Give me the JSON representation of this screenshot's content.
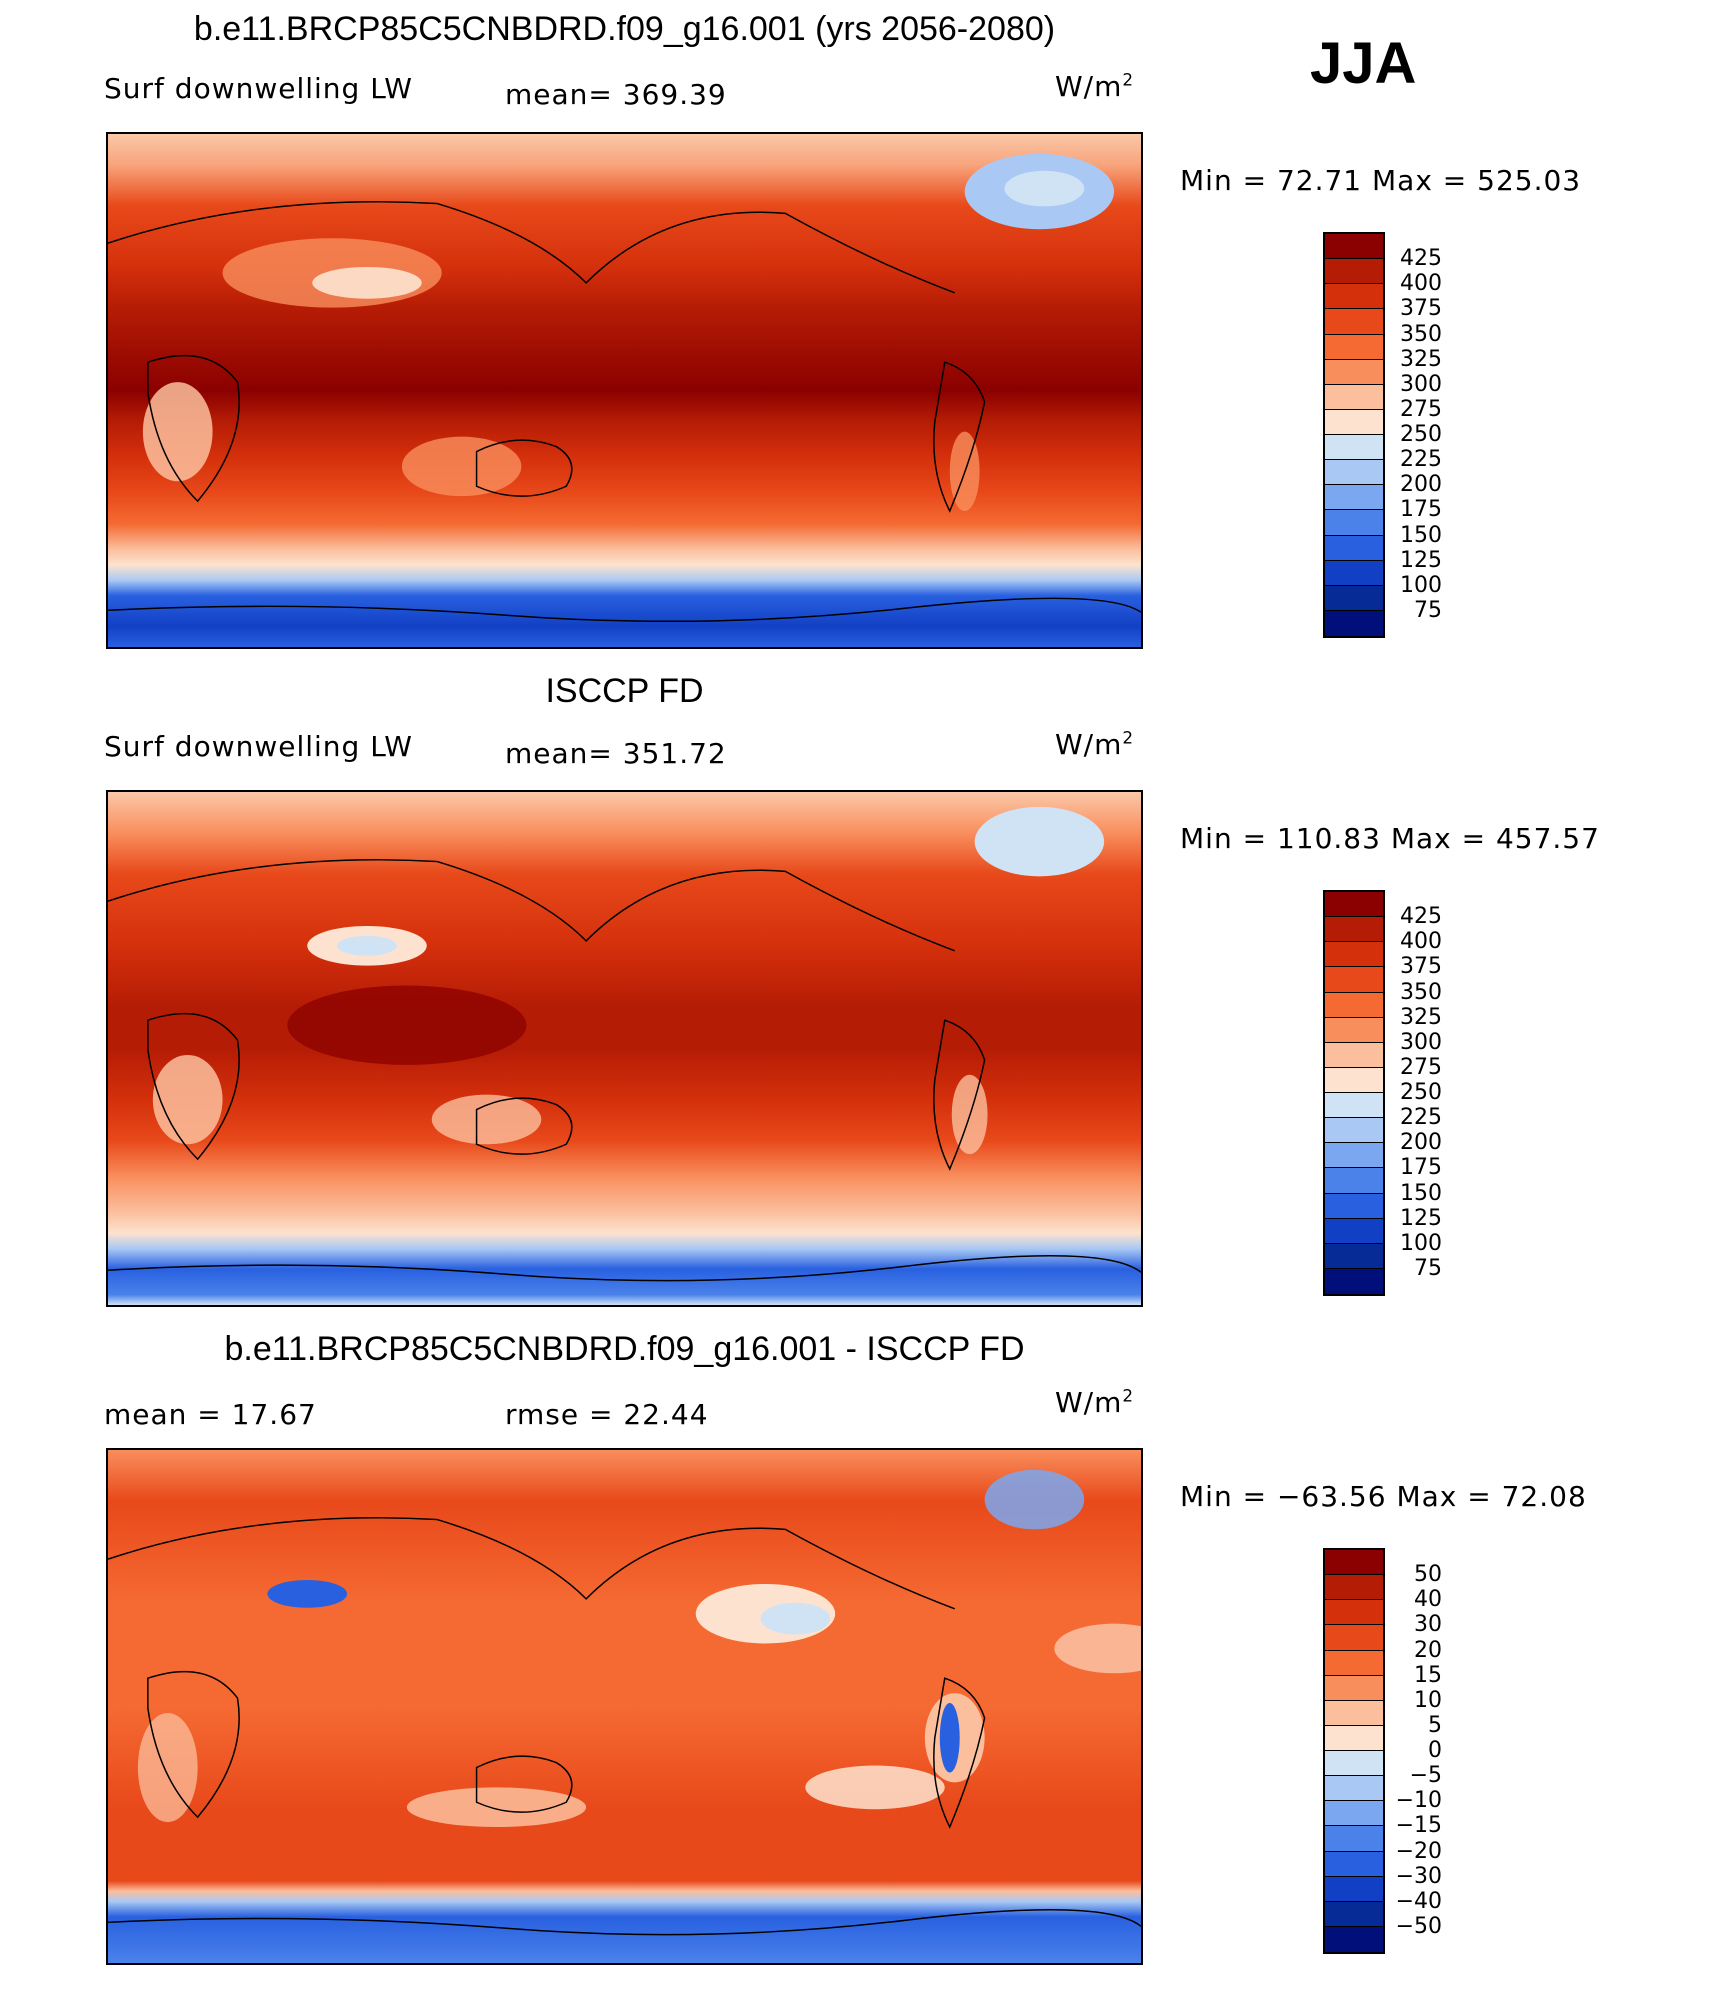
{
  "season": "JJA",
  "panels": [
    {
      "title": "b.e11.BRCP85C5CNBDRD.f09_g16.001 (yrs 2056-2080)",
      "variable": "Surf downwelling LW",
      "stat_left": "",
      "stat_mid": "mean=  369.39",
      "units_base": "W/m",
      "units_exp": "2",
      "minmax": "Min =   72.71  Max  =  525.03",
      "colorbar": {
        "labels": [
          "425",
          "400",
          "375",
          "350",
          "325",
          "300",
          "275",
          "250",
          "225",
          "200",
          "175",
          "150",
          "125",
          "100",
          "75"
        ],
        "colors": [
          "#8b0000",
          "#b51c05",
          "#d4300c",
          "#e8491a",
          "#f56a33",
          "#f98e5d",
          "#fbbf9e",
          "#fde3cf",
          "#cfe3f5",
          "#a9c9f4",
          "#7aa7f0",
          "#4b82ea",
          "#2860e0",
          "#1240c4",
          "#062a96",
          "#000f7a"
        ]
      }
    },
    {
      "title": "ISCCP FD",
      "variable": "Surf downwelling LW",
      "stat_left": "",
      "stat_mid": "mean=  351.72",
      "units_base": "W/m",
      "units_exp": "2",
      "minmax": "Min  =  110.83  Max  =  457.57",
      "colorbar": {
        "labels": [
          "425",
          "400",
          "375",
          "350",
          "325",
          "300",
          "275",
          "250",
          "225",
          "200",
          "175",
          "150",
          "125",
          "100",
          "75"
        ],
        "colors": [
          "#8b0000",
          "#b51c05",
          "#d4300c",
          "#e8491a",
          "#f56a33",
          "#f98e5d",
          "#fbbf9e",
          "#fde3cf",
          "#cfe3f5",
          "#a9c9f4",
          "#7aa7f0",
          "#4b82ea",
          "#2860e0",
          "#1240c4",
          "#062a96",
          "#000f7a"
        ]
      }
    },
    {
      "title": "b.e11.BRCP85C5CNBDRD.f09_g16.001 - ISCCP FD",
      "variable": "",
      "stat_left": "mean  =    17.67",
      "stat_mid": "rmse  =    22.44",
      "units_base": "W/m",
      "units_exp": "2",
      "minmax": "Min  =  −63.56  Max  =     72.08",
      "colorbar": {
        "labels": [
          "50",
          "40",
          "30",
          "20",
          "15",
          "10",
          "5",
          "0",
          "−5",
          "−10",
          "−15",
          "−20",
          "−30",
          "−40",
          "−50"
        ],
        "colors": [
          "#8b0000",
          "#b51c05",
          "#d4300c",
          "#e8491a",
          "#f56a33",
          "#f98e5d",
          "#fbbf9e",
          "#fde3cf",
          "#cfe3f5",
          "#a9c9f4",
          "#7aa7f0",
          "#4b82ea",
          "#2860e0",
          "#1240c4",
          "#062a96",
          "#000f7a"
        ]
      }
    }
  ],
  "chart_data": [
    {
      "type": "heatmap",
      "title": "b.e11.BRCP85C5CNBDRD.f09_g16.001 (yrs 2056-2080)",
      "variable": "Surf downwelling LW",
      "units": "W/m2",
      "mean": 369.39,
      "min": 72.71,
      "max": 525.03,
      "contour_levels": [
        75,
        100,
        125,
        150,
        175,
        200,
        225,
        250,
        275,
        300,
        325,
        350,
        375,
        400,
        425
      ]
    },
    {
      "type": "heatmap",
      "title": "ISCCP FD",
      "variable": "Surf downwelling LW",
      "units": "W/m2",
      "mean": 351.72,
      "min": 110.83,
      "max": 457.57,
      "contour_levels": [
        75,
        100,
        125,
        150,
        175,
        200,
        225,
        250,
        275,
        300,
        325,
        350,
        375,
        400,
        425
      ]
    },
    {
      "type": "heatmap",
      "title": "b.e11.BRCP85C5CNBDRD.f09_g16.001 - ISCCP FD",
      "units": "W/m2",
      "mean": 17.67,
      "rmse": 22.44,
      "min": -63.56,
      "max": 72.08,
      "contour_levels": [
        -50,
        -40,
        -30,
        -20,
        -15,
        -10,
        -5,
        0,
        5,
        10,
        15,
        20,
        30,
        40,
        50
      ]
    }
  ]
}
